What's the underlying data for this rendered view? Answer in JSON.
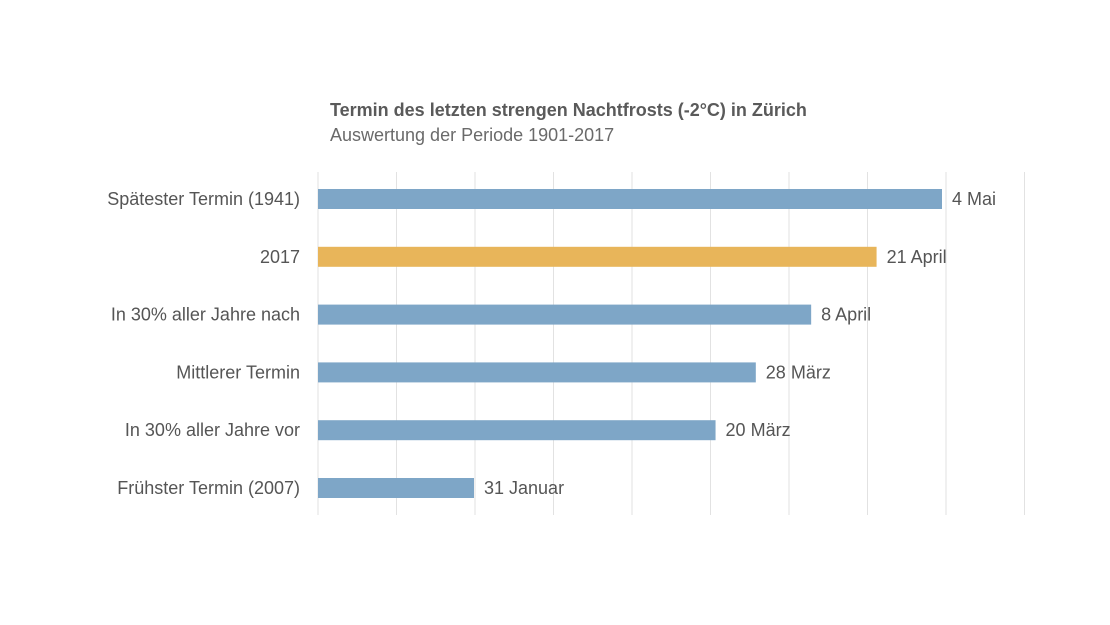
{
  "chart_data": {
    "type": "bar",
    "orientation": "horizontal",
    "title": "Termin des letzten strengen Nachtfrosts (-2°C) in Zürich",
    "subtitle": "Auswertung der Periode 1901-2017",
    "categories": [
      "Spätester Termin (1941)",
      "2017",
      "In 30% aller Jahre nach",
      "Mittlerer Termin",
      "In 30% aller Jahre vor",
      "Frühster Termin (2007)"
    ],
    "values": [
      "1941-05-04",
      "2017-04-21",
      "2017-04-08",
      "2017-03-28",
      "2017-03-20",
      "2007-01-31"
    ],
    "day_of_year": [
      124,
      111,
      98,
      87,
      79,
      31
    ],
    "data_labels": [
      "4 Mai",
      "21 April",
      "8 April",
      "28 März",
      "20 März",
      "31 Januar"
    ],
    "colors": [
      "#7ea6c7",
      "#e8b55a",
      "#7ea6c7",
      "#7ea6c7",
      "#7ea6c7",
      "#7ea6c7"
    ],
    "grid": true,
    "legend": "none"
  }
}
